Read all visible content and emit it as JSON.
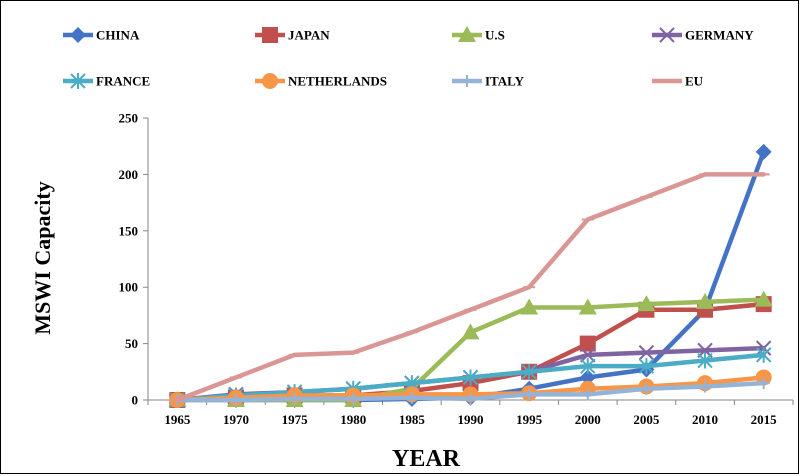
{
  "chart_data": {
    "type": "line",
    "xlabel": "YEAR",
    "ylabel": "MSWI Capacity",
    "ylim": [
      0,
      250
    ],
    "yticks": [
      "0",
      "50",
      "100",
      "150",
      "200",
      "250"
    ],
    "categories": [
      "1965",
      "1970",
      "1975",
      "1980",
      "1985",
      "1990",
      "1995",
      "2000",
      "2005",
      "2010",
      "2015"
    ],
    "grid": false,
    "legend_position": "top",
    "series": [
      {
        "name": "CHINA",
        "color": "#4472C4",
        "marker": "diamond",
        "values": [
          0,
          0,
          0,
          0,
          1,
          2,
          10,
          20,
          27,
          80,
          220
        ]
      },
      {
        "name": "JAPAN",
        "color": "#C0504D",
        "marker": "square",
        "values": [
          0,
          2,
          4,
          4,
          8,
          15,
          25,
          50,
          80,
          80,
          85
        ]
      },
      {
        "name": "U.S",
        "color": "#9BBB59",
        "marker": "triangle",
        "values": [
          0,
          0,
          0,
          0,
          10,
          60,
          82,
          82,
          85,
          87,
          89
        ]
      },
      {
        "name": "GERMANY",
        "color": "#8064A2",
        "marker": "x",
        "values": [
          0,
          5,
          7,
          10,
          15,
          20,
          25,
          40,
          42,
          44,
          46
        ]
      },
      {
        "name": "FRANCE",
        "color": "#4BACC6",
        "marker": "star",
        "values": [
          0,
          4,
          7,
          10,
          15,
          20,
          25,
          30,
          30,
          35,
          40
        ]
      },
      {
        "name": "NETHERLANDS",
        "color": "#F79646",
        "marker": "circle",
        "values": [
          0,
          2,
          4,
          4,
          5,
          5,
          6,
          10,
          12,
          15,
          20
        ]
      },
      {
        "name": "ITALY",
        "color": "#95B3D7",
        "marker": "plus",
        "values": [
          0,
          0,
          1,
          1,
          2,
          1,
          5,
          5,
          10,
          12,
          15
        ]
      },
      {
        "name": "EU",
        "color": "#D99694",
        "marker": "dash",
        "values": [
          0,
          20,
          40,
          42,
          60,
          80,
          100,
          160,
          180,
          200,
          200
        ]
      }
    ]
  }
}
